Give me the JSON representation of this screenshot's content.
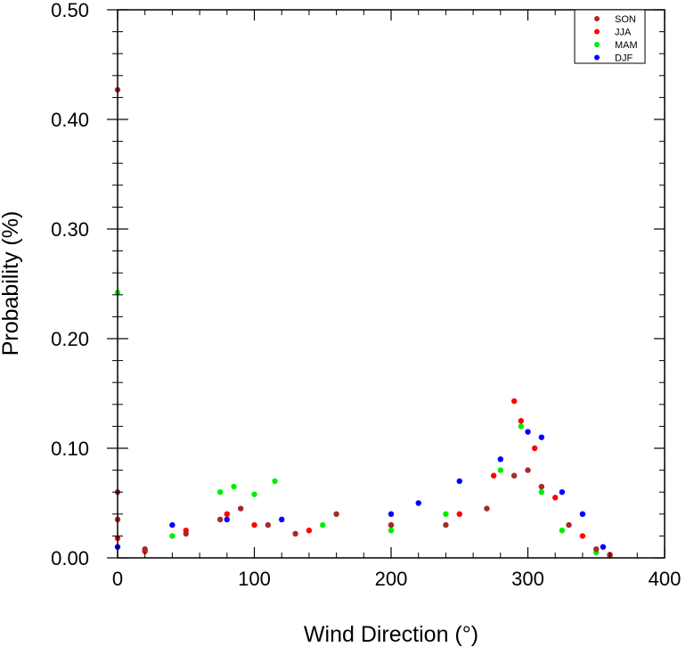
{
  "chart_data": {
    "type": "scatter",
    "title": "",
    "xlabel": "Wind Direction (°)",
    "ylabel": "Probability (%)",
    "xlim": [
      0,
      400
    ],
    "ylim": [
      0,
      0.5
    ],
    "x_ticks": [
      "0",
      "100",
      "200",
      "300",
      "400"
    ],
    "y_ticks": [
      "0.00",
      "0.10",
      "0.20",
      "0.30",
      "0.40",
      "0.50"
    ],
    "grid": false,
    "legend_position": "top-right",
    "series": [
      {
        "name": "SON",
        "color": "#a52a2a",
        "points": [
          [
            0,
            0.427
          ],
          [
            0,
            0.06
          ],
          [
            0,
            0.035
          ],
          [
            20,
            0.008
          ],
          [
            50,
            0.022
          ],
          [
            75,
            0.035
          ],
          [
            90,
            0.045
          ],
          [
            110,
            0.03
          ],
          [
            130,
            0.022
          ],
          [
            160,
            0.04
          ],
          [
            200,
            0.03
          ],
          [
            240,
            0.03
          ],
          [
            270,
            0.045
          ],
          [
            290,
            0.075
          ],
          [
            300,
            0.08
          ],
          [
            310,
            0.065
          ],
          [
            330,
            0.03
          ],
          [
            350,
            0.008
          ],
          [
            360,
            0.003
          ]
        ]
      },
      {
        "name": "JJA",
        "color": "#ff0000",
        "points": [
          [
            0,
            0.018
          ],
          [
            20,
            0.006
          ],
          [
            50,
            0.025
          ],
          [
            80,
            0.04
          ],
          [
            100,
            0.03
          ],
          [
            140,
            0.025
          ],
          [
            200,
            0.03
          ],
          [
            250,
            0.04
          ],
          [
            275,
            0.075
          ],
          [
            290,
            0.143
          ],
          [
            295,
            0.125
          ],
          [
            305,
            0.1
          ],
          [
            320,
            0.055
          ],
          [
            340,
            0.02
          ],
          [
            360,
            0.002
          ]
        ]
      },
      {
        "name": "MAM",
        "color": "#00ee00",
        "points": [
          [
            0,
            0.242
          ],
          [
            40,
            0.02
          ],
          [
            75,
            0.06
          ],
          [
            85,
            0.065
          ],
          [
            100,
            0.058
          ],
          [
            115,
            0.07
          ],
          [
            150,
            0.03
          ],
          [
            200,
            0.025
          ],
          [
            240,
            0.04
          ],
          [
            280,
            0.08
          ],
          [
            295,
            0.12
          ],
          [
            310,
            0.06
          ],
          [
            325,
            0.025
          ],
          [
            350,
            0.005
          ]
        ]
      },
      {
        "name": "DJF",
        "color": "#0000ff",
        "points": [
          [
            0,
            0.01
          ],
          [
            40,
            0.03
          ],
          [
            80,
            0.035
          ],
          [
            120,
            0.035
          ],
          [
            200,
            0.04
          ],
          [
            220,
            0.05
          ],
          [
            250,
            0.07
          ],
          [
            280,
            0.09
          ],
          [
            300,
            0.115
          ],
          [
            310,
            0.11
          ],
          [
            325,
            0.06
          ],
          [
            340,
            0.04
          ],
          [
            355,
            0.01
          ]
        ]
      }
    ]
  }
}
